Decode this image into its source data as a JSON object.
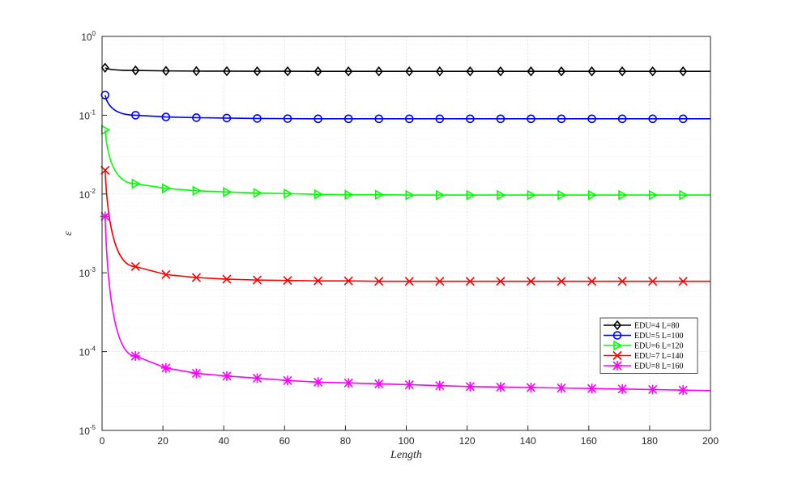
{
  "chart_data": {
    "type": "line",
    "title": "",
    "xlabel": "Length",
    "ylabel": "ε",
    "x_scale": "linear",
    "y_scale": "log",
    "xlim": [
      0,
      200
    ],
    "ylim": [
      1e-05,
      1
    ],
    "x_ticks": [
      0,
      20,
      40,
      60,
      80,
      100,
      120,
      140,
      160,
      180,
      200
    ],
    "y_ticks": [
      {
        "value": 1e-05,
        "base": "10",
        "exp": "-5"
      },
      {
        "value": 0.0001,
        "base": "10",
        "exp": "-4"
      },
      {
        "value": 0.001,
        "base": "10",
        "exp": "-3"
      },
      {
        "value": 0.01,
        "base": "10",
        "exp": "-2"
      },
      {
        "value": 0.1,
        "base": "10",
        "exp": "-1"
      },
      {
        "value": 1,
        "base": "10",
        "exp": "0"
      }
    ],
    "grid": true,
    "legend_position": "lower-right",
    "x": [
      1,
      11,
      21,
      31,
      41,
      51,
      61,
      71,
      81,
      91,
      101,
      111,
      121,
      131,
      141,
      151,
      161,
      171,
      181,
      191,
      200
    ],
    "series": [
      {
        "name": "EDU=4 L=80",
        "color": "#000000",
        "marker": "diamond",
        "values": [
          0.4,
          0.37,
          0.365,
          0.363,
          0.362,
          0.361,
          0.361,
          0.36,
          0.36,
          0.36,
          0.36,
          0.36,
          0.36,
          0.36,
          0.36,
          0.36,
          0.36,
          0.36,
          0.36,
          0.36,
          0.36
        ]
      },
      {
        "name": "EDU=5 L=100",
        "color": "#0000ff",
        "marker": "circle",
        "values": [
          0.18,
          0.1,
          0.095,
          0.093,
          0.092,
          0.091,
          0.0905,
          0.09,
          0.09,
          0.09,
          0.09,
          0.09,
          0.09,
          0.09,
          0.09,
          0.09,
          0.09,
          0.09,
          0.09,
          0.09,
          0.09
        ]
      },
      {
        "name": "EDU=6 L=120",
        "color": "#00ff00",
        "marker": "triangle-right",
        "values": [
          0.065,
          0.0135,
          0.0118,
          0.011,
          0.0106,
          0.0103,
          0.0101,
          0.0099,
          0.0098,
          0.0098,
          0.0097,
          0.0097,
          0.0097,
          0.0097,
          0.0097,
          0.0097,
          0.0097,
          0.0097,
          0.0097,
          0.0097,
          0.0097
        ]
      },
      {
        "name": "EDU=7 L=140",
        "color": "#ff0000",
        "marker": "x",
        "values": [
          0.02,
          0.0012,
          0.00095,
          0.00087,
          0.00083,
          0.00081,
          0.0008,
          0.00079,
          0.00079,
          0.00078,
          0.00078,
          0.00078,
          0.00078,
          0.00078,
          0.00078,
          0.00078,
          0.00078,
          0.00078,
          0.00078,
          0.00078,
          0.00078
        ]
      },
      {
        "name": "EDU=8 L=160",
        "color": "#ff00ff",
        "marker": "asterisk",
        "values": [
          0.0052,
          8.8e-05,
          6.2e-05,
          5.3e-05,
          4.9e-05,
          4.6e-05,
          4.3e-05,
          4.1e-05,
          4e-05,
          3.9e-05,
          3.8e-05,
          3.7e-05,
          3.6e-05,
          3.55e-05,
          3.5e-05,
          3.45e-05,
          3.4e-05,
          3.35e-05,
          3.3e-05,
          3.25e-05,
          3.2e-05
        ]
      }
    ]
  }
}
